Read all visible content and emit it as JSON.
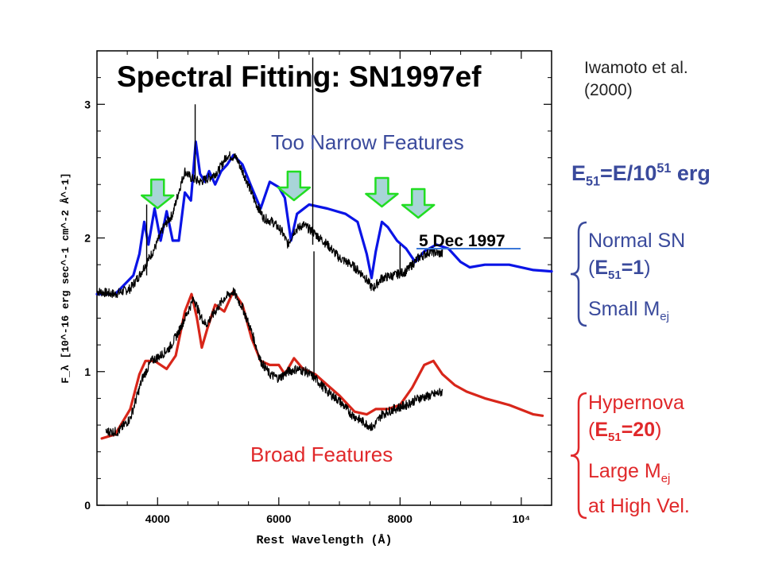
{
  "slide": {
    "title": "Spectral Fitting: SN1997ef",
    "citation_line1": "Iwamoto et al.",
    "citation_line2": "(2000)",
    "label_narrow": "Too Narrow Features",
    "label_broad": "Broad Features",
    "formula_E": "E",
    "formula_sub": "51",
    "formula_mid": "=E/10",
    "formula_sup": "51",
    "formula_end": " erg",
    "normal_line1": "Normal SN",
    "normal_open": "(",
    "normal_E": "E",
    "normal_sub": "51",
    "normal_val": "=1",
    "normal_close": ")",
    "normal_line3a": "Small M",
    "normal_line3sub": "ej",
    "hyper_line1": "Hypernova",
    "hyper_open": "(",
    "hyper_E": "E",
    "hyper_sub": "51",
    "hyper_val": "=20",
    "hyper_close": ")",
    "hyper_line3a": "Large M",
    "hyper_line3sub": "ej",
    "hyper_line4": "at High Vel.",
    "date_label": "5 Dec 1997"
  },
  "colors": {
    "model_normal": "#0a14e6",
    "model_hypernova": "#d8261a",
    "observed": "#000000",
    "arrow_fill": "#a8d4d8",
    "arrow_stroke": "#22dd22",
    "text_blue": "#3a4a9c",
    "text_red": "#e0282a"
  },
  "chart_data": {
    "type": "line",
    "xlabel": "Rest Wavelength (Å)",
    "ylabel": "F_λ [10^-16 erg sec^-1 cm^-2 Å^-1]",
    "xlim": [
      3000,
      10500
    ],
    "ylim": [
      0,
      3.4
    ],
    "x_ticks": [
      4000,
      6000,
      8000,
      10000
    ],
    "x_tick_labels": [
      "4000",
      "6000",
      "8000",
      "10⁴"
    ],
    "y_ticks": [
      0,
      1,
      2,
      3
    ],
    "y_tick_labels": [
      "0",
      "1",
      "2",
      "3"
    ],
    "arrows_at_wavelength": [
      4000,
      6250,
      7700,
      8300
    ],
    "series": [
      {
        "key": "normal_model",
        "color_key": "model_normal",
        "points": [
          [
            3000,
            1.58
          ],
          [
            3300,
            1.58
          ],
          [
            3600,
            1.72
          ],
          [
            3700,
            1.88
          ],
          [
            3780,
            2.12
          ],
          [
            3850,
            1.95
          ],
          [
            3950,
            2.22
          ],
          [
            4050,
            1.98
          ],
          [
            4150,
            2.2
          ],
          [
            4250,
            1.98
          ],
          [
            4350,
            1.98
          ],
          [
            4450,
            2.34
          ],
          [
            4550,
            2.28
          ],
          [
            4630,
            2.72
          ],
          [
            4700,
            2.48
          ],
          [
            4780,
            2.42
          ],
          [
            4850,
            2.5
          ],
          [
            4950,
            2.4
          ],
          [
            5050,
            2.5
          ],
          [
            5150,
            2.55
          ],
          [
            5250,
            2.62
          ],
          [
            5400,
            2.55
          ],
          [
            5550,
            2.38
          ],
          [
            5700,
            2.22
          ],
          [
            5850,
            2.42
          ],
          [
            6000,
            2.38
          ],
          [
            6100,
            2.3
          ],
          [
            6200,
            1.98
          ],
          [
            6300,
            2.18
          ],
          [
            6500,
            2.25
          ],
          [
            6800,
            2.22
          ],
          [
            7100,
            2.18
          ],
          [
            7300,
            2.12
          ],
          [
            7450,
            1.88
          ],
          [
            7530,
            1.7
          ],
          [
            7600,
            1.9
          ],
          [
            7700,
            2.12
          ],
          [
            7800,
            2.08
          ],
          [
            7950,
            1.98
          ],
          [
            8100,
            1.92
          ],
          [
            8250,
            1.82
          ],
          [
            8400,
            1.9
          ],
          [
            8600,
            1.95
          ],
          [
            8800,
            1.92
          ],
          [
            9000,
            1.82
          ],
          [
            9150,
            1.78
          ],
          [
            9400,
            1.8
          ],
          [
            9800,
            1.8
          ],
          [
            10200,
            1.76
          ],
          [
            10500,
            1.75
          ]
        ]
      },
      {
        "key": "hypernova_model",
        "color_key": "model_hypernova",
        "points": [
          [
            3080,
            0.5
          ],
          [
            3300,
            0.53
          ],
          [
            3550,
            0.72
          ],
          [
            3700,
            0.98
          ],
          [
            3800,
            1.08
          ],
          [
            3950,
            1.08
          ],
          [
            4150,
            1.02
          ],
          [
            4300,
            1.12
          ],
          [
            4450,
            1.45
          ],
          [
            4560,
            1.58
          ],
          [
            4650,
            1.4
          ],
          [
            4730,
            1.18
          ],
          [
            4820,
            1.32
          ],
          [
            4950,
            1.5
          ],
          [
            5100,
            1.45
          ],
          [
            5250,
            1.6
          ],
          [
            5400,
            1.5
          ],
          [
            5550,
            1.25
          ],
          [
            5700,
            1.08
          ],
          [
            5850,
            1.05
          ],
          [
            6000,
            1.05
          ],
          [
            6100,
            0.98
          ],
          [
            6250,
            1.1
          ],
          [
            6400,
            1.02
          ],
          [
            6600,
            0.98
          ],
          [
            6800,
            0.9
          ],
          [
            7000,
            0.82
          ],
          [
            7250,
            0.7
          ],
          [
            7450,
            0.68
          ],
          [
            7600,
            0.72
          ],
          [
            7800,
            0.72
          ],
          [
            8000,
            0.75
          ],
          [
            8200,
            0.88
          ],
          [
            8400,
            1.05
          ],
          [
            8550,
            1.08
          ],
          [
            8700,
            0.98
          ],
          [
            8900,
            0.9
          ],
          [
            9100,
            0.85
          ],
          [
            9400,
            0.8
          ],
          [
            9800,
            0.75
          ],
          [
            10200,
            0.68
          ],
          [
            10350,
            0.67
          ]
        ]
      },
      {
        "key": "observed_upper",
        "color_key": "observed",
        "points": [
          [
            3000,
            1.6
          ],
          [
            3300,
            1.58
          ],
          [
            3550,
            1.62
          ],
          [
            3700,
            1.72
          ],
          [
            3800,
            1.8
          ],
          [
            3950,
            1.92
          ],
          [
            4100,
            2.08
          ],
          [
            4250,
            2.18
          ],
          [
            4350,
            2.35
          ],
          [
            4450,
            2.5
          ],
          [
            4550,
            2.45
          ],
          [
            4700,
            2.42
          ],
          [
            4850,
            2.45
          ],
          [
            5000,
            2.5
          ],
          [
            5150,
            2.62
          ],
          [
            5300,
            2.6
          ],
          [
            5450,
            2.45
          ],
          [
            5600,
            2.28
          ],
          [
            5750,
            2.15
          ],
          [
            5900,
            2.12
          ],
          [
            6050,
            2.05
          ],
          [
            6150,
            1.95
          ],
          [
            6250,
            2.05
          ],
          [
            6400,
            2.1
          ],
          [
            6550,
            2.05
          ],
          [
            6800,
            1.95
          ],
          [
            7000,
            1.85
          ],
          [
            7200,
            1.8
          ],
          [
            7400,
            1.72
          ],
          [
            7550,
            1.62
          ],
          [
            7700,
            1.7
          ],
          [
            7900,
            1.72
          ],
          [
            8100,
            1.75
          ],
          [
            8300,
            1.85
          ],
          [
            8500,
            1.9
          ],
          [
            8700,
            1.88
          ]
        ]
      },
      {
        "key": "observed_lower",
        "color_key": "observed",
        "points": [
          [
            3150,
            0.55
          ],
          [
            3350,
            0.55
          ],
          [
            3550,
            0.65
          ],
          [
            3750,
            0.95
          ],
          [
            3900,
            1.08
          ],
          [
            4050,
            1.12
          ],
          [
            4200,
            1.18
          ],
          [
            4350,
            1.3
          ],
          [
            4500,
            1.45
          ],
          [
            4600,
            1.55
          ],
          [
            4700,
            1.42
          ],
          [
            4800,
            1.35
          ],
          [
            4950,
            1.45
          ],
          [
            5100,
            1.55
          ],
          [
            5250,
            1.6
          ],
          [
            5400,
            1.48
          ],
          [
            5550,
            1.3
          ],
          [
            5700,
            1.08
          ],
          [
            5850,
            0.98
          ],
          [
            6000,
            0.95
          ],
          [
            6150,
            1.0
          ],
          [
            6300,
            1.02
          ],
          [
            6450,
            1.0
          ],
          [
            6600,
            0.95
          ],
          [
            6800,
            0.85
          ],
          [
            7000,
            0.78
          ],
          [
            7200,
            0.68
          ],
          [
            7400,
            0.62
          ],
          [
            7550,
            0.58
          ],
          [
            7700,
            0.68
          ],
          [
            7900,
            0.72
          ],
          [
            8100,
            0.75
          ],
          [
            8300,
            0.8
          ],
          [
            8500,
            0.82
          ],
          [
            8700,
            0.85
          ]
        ]
      }
    ]
  }
}
